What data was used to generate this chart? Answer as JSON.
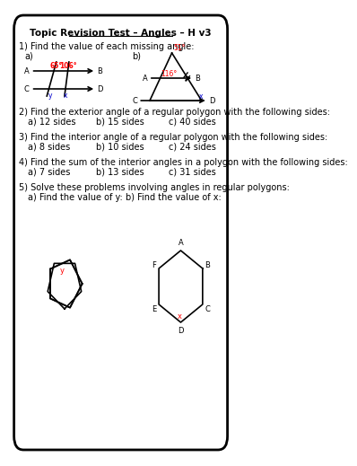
{
  "title": "Topic Revision Test – Angles – H v3",
  "bg_color": "#ffffff",
  "border_color": "#000000",
  "q1_text": "1) Find the value of each missing angle:",
  "q1a_label": "a)",
  "q1b_label": "b)",
  "q2_text": "2) Find the exterior angle of a regular polygon with the following sides:",
  "q2a": "a) 12 sides",
  "q2b": "b) 15 sides",
  "q2c": "c) 40 sides",
  "q3_text": "3) Find the interior angle of a regular polygon with the following sides:",
  "q3a": "a) 8 sides",
  "q3b": "b) 10 sides",
  "q3c": "c) 24 sides",
  "q4_text": "4) Find the sum of the interior angles in a polygon with the following sides:",
  "q4a": "a) 7 sides",
  "q4b": "b) 13 sides",
  "q4c": "c) 31 sides",
  "q5_text": "5) Solve these problems involving angles in regular polygons:",
  "q5a": "a) Find the value of y:",
  "q5b": "b) Find the value of x:",
  "angle_color": "#ff0000",
  "line_color": "#000000",
  "label_color": "#0000cd"
}
